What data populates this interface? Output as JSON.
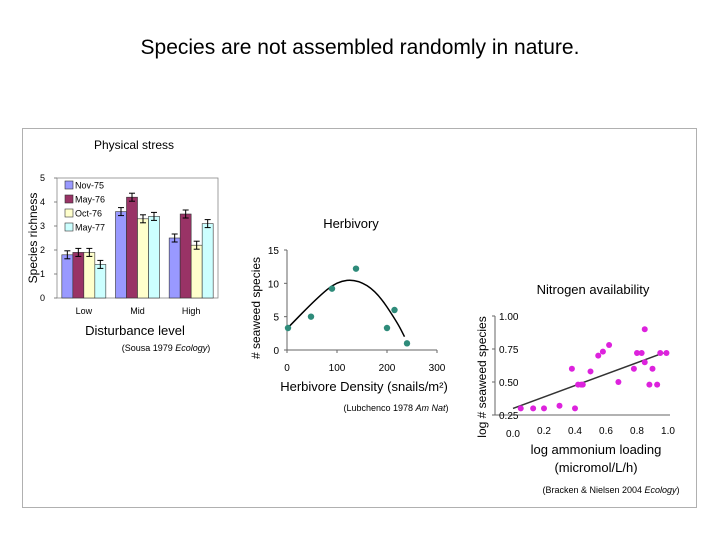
{
  "page_title": "Species are not assembled randomly in nature.",
  "chart_data": [
    {
      "type": "bar",
      "panel_label": "Physical stress",
      "ylabel": "Species richness",
      "xlabel": "Disturbance level",
      "citation_prefix": "(Sousa 1979 ",
      "citation_journal": "Ecology",
      "citation_suffix": ")",
      "categories": [
        "Low",
        "Mid",
        "High"
      ],
      "ylim": [
        0,
        5
      ],
      "yticks": [
        "0",
        "1",
        "2",
        "3",
        "4",
        "5"
      ],
      "legend": "top-left",
      "series": [
        {
          "name": "Nov-75",
          "color": "#9999ff",
          "values": [
            1.8,
            3.6,
            2.5
          ]
        },
        {
          "name": "May-76",
          "color": "#993366",
          "values": [
            1.9,
            4.2,
            3.5
          ]
        },
        {
          "name": "Oct-76",
          "color": "#ffffcc",
          "values": [
            1.9,
            3.3,
            2.2
          ]
        },
        {
          "name": "May-77",
          "color": "#ccffff",
          "values": [
            1.4,
            3.4,
            3.1
          ]
        }
      ]
    },
    {
      "type": "scatter",
      "panel_label": "Herbivory",
      "ylabel": "# seaweed species",
      "xlabel": "Herbivore Density (snails/m²)",
      "citation_prefix": "(Lubchenco 1978 ",
      "citation_journal": "Am Nat",
      "citation_suffix": ")",
      "xlim": [
        0,
        300
      ],
      "ylim": [
        0,
        15
      ],
      "xticks": [
        "0",
        "100",
        "200",
        "300"
      ],
      "yticks": [
        "0",
        "5",
        "10",
        "15"
      ],
      "point_color": "#2e8b7a",
      "points": [
        [
          2,
          3.3
        ],
        [
          48,
          5
        ],
        [
          90,
          9.2
        ],
        [
          138,
          12.2
        ],
        [
          200,
          3.3
        ],
        [
          215,
          6
        ],
        [
          240,
          1
        ]
      ],
      "fit": "quadratic",
      "fit_points": [
        [
          0,
          3.2
        ],
        [
          60,
          7.8
        ],
        [
          100,
          10.3
        ],
        [
          140,
          10.6
        ],
        [
          180,
          8.7
        ],
        [
          220,
          4.2
        ],
        [
          235,
          2.0
        ]
      ]
    },
    {
      "type": "scatter",
      "panel_label": "Nitrogen availability",
      "ylabel": "log # seaweed species",
      "xlabel": "log ammonium loading (micromol/L/h)",
      "citation_prefix": "(Bracken & Nielsen 2004 ",
      "citation_journal": "Ecology",
      "citation_suffix": ")",
      "xlim": [
        0,
        1.0
      ],
      "ylim": [
        0.25,
        1.0
      ],
      "xticks": [
        "0.0",
        "0.2",
        "0.4",
        "0.6",
        "0.8",
        "1.0"
      ],
      "yticks": [
        "0.25",
        "0.50",
        "0.75",
        "1.00"
      ],
      "point_color": "#dd22dd",
      "points": [
        [
          0.05,
          0.3
        ],
        [
          0.13,
          0.3
        ],
        [
          0.2,
          0.3
        ],
        [
          0.3,
          0.32
        ],
        [
          0.38,
          0.6
        ],
        [
          0.4,
          0.3
        ],
        [
          0.42,
          0.48
        ],
        [
          0.44,
          0.48
        ],
        [
          0.45,
          0.48
        ],
        [
          0.5,
          0.58
        ],
        [
          0.55,
          0.7
        ],
        [
          0.58,
          0.73
        ],
        [
          0.62,
          0.78
        ],
        [
          0.68,
          0.5
        ],
        [
          0.78,
          0.6
        ],
        [
          0.8,
          0.72
        ],
        [
          0.83,
          0.72
        ],
        [
          0.85,
          0.65
        ],
        [
          0.85,
          0.9
        ],
        [
          0.88,
          0.48
        ],
        [
          0.9,
          0.6
        ],
        [
          0.93,
          0.48
        ],
        [
          0.95,
          0.72
        ],
        [
          0.99,
          0.72
        ]
      ],
      "fit": "linear",
      "fit_line": [
        [
          0.0,
          0.3
        ],
        [
          0.97,
          0.72
        ]
      ]
    }
  ]
}
